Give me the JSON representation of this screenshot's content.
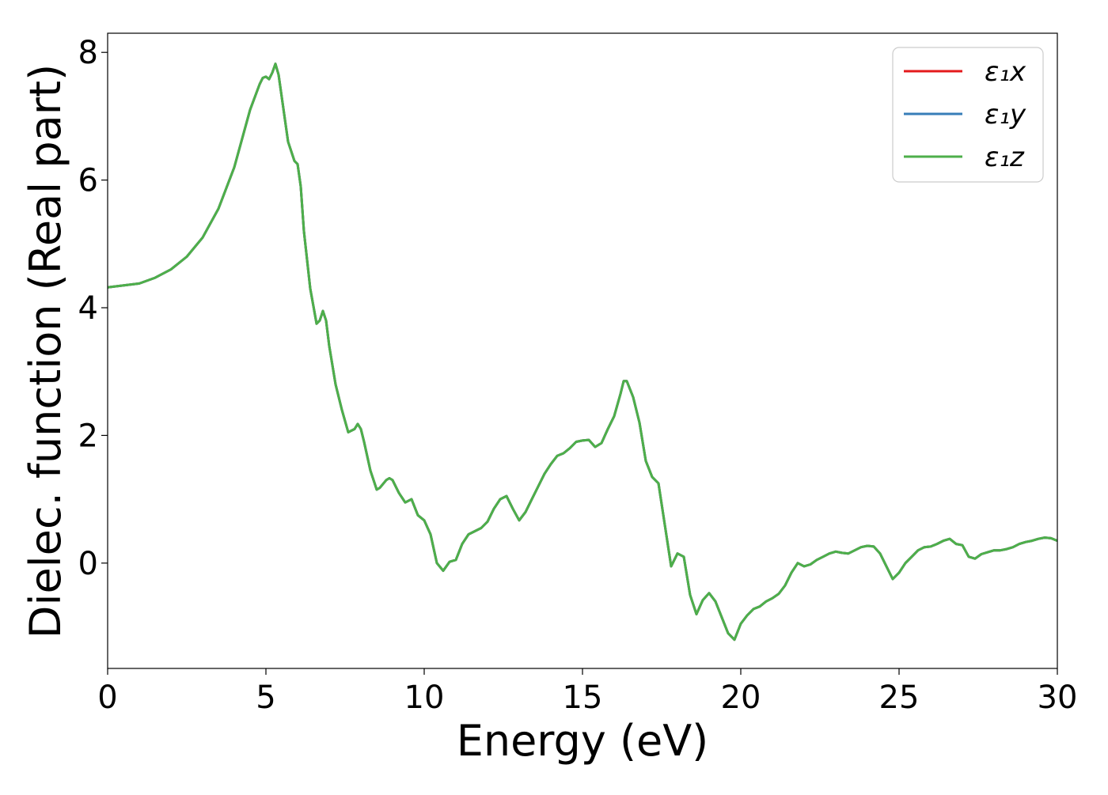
{
  "chart_data": {
    "type": "line",
    "title": "",
    "xlabel": "Energy (eV)",
    "ylabel": "Dielec. function (Real part)",
    "xlim": [
      0,
      30
    ],
    "ylim": [
      -1.65,
      8.3
    ],
    "xticks": [
      0,
      5,
      10,
      15,
      20,
      25,
      30
    ],
    "yticks": [
      0,
      2,
      4,
      6,
      8
    ],
    "grid": false,
    "legend_position": "top-right",
    "x": [
      0,
      1,
      1.5,
      2,
      2.5,
      3,
      3.5,
      4,
      4.5,
      4.8,
      4.9,
      5.0,
      5.1,
      5.2,
      5.3,
      5.4,
      5.5,
      5.7,
      5.9,
      6.0,
      6.1,
      6.2,
      6.4,
      6.6,
      6.7,
      6.8,
      6.9,
      7.0,
      7.2,
      7.4,
      7.6,
      7.8,
      7.9,
      8.0,
      8.1,
      8.3,
      8.5,
      8.6,
      8.8,
      8.9,
      9.0,
      9.2,
      9.4,
      9.6,
      9.8,
      10.0,
      10.2,
      10.4,
      10.6,
      10.8,
      11.0,
      11.2,
      11.4,
      11.6,
      11.8,
      12.0,
      12.2,
      12.4,
      12.6,
      12.8,
      13.0,
      13.2,
      13.4,
      13.6,
      13.8,
      14.0,
      14.2,
      14.4,
      14.6,
      14.8,
      15.0,
      15.2,
      15.4,
      15.6,
      15.8,
      16.0,
      16.2,
      16.3,
      16.4,
      16.6,
      16.8,
      17.0,
      17.2,
      17.4,
      17.6,
      17.8,
      18.0,
      18.2,
      18.4,
      18.6,
      18.8,
      19.0,
      19.2,
      19.4,
      19.6,
      19.8,
      20.0,
      20.2,
      20.4,
      20.6,
      20.8,
      21.0,
      21.2,
      21.4,
      21.6,
      21.8,
      22.0,
      22.2,
      22.4,
      22.6,
      22.8,
      23.0,
      23.2,
      23.4,
      23.6,
      23.8,
      24.0,
      24.2,
      24.4,
      24.6,
      24.8,
      25.0,
      25.2,
      25.4,
      25.6,
      25.8,
      26.0,
      26.2,
      26.4,
      26.6,
      26.8,
      27.0,
      27.2,
      27.4,
      27.6,
      27.8,
      28.0,
      28.2,
      28.4,
      28.6,
      28.8,
      29.0,
      29.2,
      29.4,
      29.6,
      29.8,
      30.0
    ],
    "series": [
      {
        "name": "ε₁x",
        "color": "#e41a1c",
        "y": [
          4.32,
          4.38,
          4.47,
          4.6,
          4.8,
          5.1,
          5.55,
          6.2,
          7.1,
          7.5,
          7.6,
          7.62,
          7.58,
          7.68,
          7.82,
          7.65,
          7.3,
          6.6,
          6.3,
          6.25,
          5.9,
          5.2,
          4.3,
          3.75,
          3.8,
          3.95,
          3.8,
          3.4,
          2.8,
          2.4,
          2.05,
          2.1,
          2.18,
          2.1,
          1.9,
          1.45,
          1.15,
          1.18,
          1.3,
          1.33,
          1.3,
          1.1,
          0.95,
          1.0,
          0.75,
          0.67,
          0.45,
          0.0,
          -0.12,
          0.02,
          0.05,
          0.3,
          0.45,
          0.5,
          0.55,
          0.65,
          0.85,
          1.0,
          1.05,
          0.85,
          0.67,
          0.8,
          1.0,
          1.2,
          1.4,
          1.55,
          1.68,
          1.72,
          1.8,
          1.9,
          1.92,
          1.93,
          1.82,
          1.88,
          2.1,
          2.3,
          2.65,
          2.85,
          2.85,
          2.6,
          2.2,
          1.6,
          1.35,
          1.25,
          0.6,
          -0.05,
          0.15,
          0.1,
          -0.5,
          -0.8,
          -0.58,
          -0.47,
          -0.6,
          -0.85,
          -1.1,
          -1.2,
          -0.95,
          -0.82,
          -0.72,
          -0.68,
          -0.6,
          -0.55,
          -0.48,
          -0.35,
          -0.15,
          0.0,
          -0.05,
          -0.02,
          0.05,
          0.1,
          0.15,
          0.18,
          0.16,
          0.15,
          0.2,
          0.25,
          0.27,
          0.26,
          0.15,
          -0.05,
          -0.25,
          -0.15,
          0.0,
          0.1,
          0.2,
          0.25,
          0.26,
          0.3,
          0.35,
          0.38,
          0.3,
          0.28,
          0.1,
          0.07,
          0.14,
          0.17,
          0.2,
          0.2,
          0.22,
          0.25,
          0.3,
          0.33,
          0.35,
          0.38,
          0.4,
          0.39,
          0.35
        ]
      },
      {
        "name": "ε₁y",
        "color": "#377eb8",
        "y": [
          4.32,
          4.38,
          4.47,
          4.6,
          4.8,
          5.1,
          5.55,
          6.2,
          7.1,
          7.5,
          7.6,
          7.62,
          7.58,
          7.68,
          7.82,
          7.65,
          7.3,
          6.6,
          6.3,
          6.25,
          5.9,
          5.2,
          4.3,
          3.75,
          3.8,
          3.95,
          3.8,
          3.4,
          2.8,
          2.4,
          2.05,
          2.1,
          2.18,
          2.1,
          1.9,
          1.45,
          1.15,
          1.18,
          1.3,
          1.33,
          1.3,
          1.1,
          0.95,
          1.0,
          0.75,
          0.67,
          0.45,
          0.0,
          -0.12,
          0.02,
          0.05,
          0.3,
          0.45,
          0.5,
          0.55,
          0.65,
          0.85,
          1.0,
          1.05,
          0.85,
          0.67,
          0.8,
          1.0,
          1.2,
          1.4,
          1.55,
          1.68,
          1.72,
          1.8,
          1.9,
          1.92,
          1.93,
          1.82,
          1.88,
          2.1,
          2.3,
          2.65,
          2.85,
          2.85,
          2.6,
          2.2,
          1.6,
          1.35,
          1.25,
          0.6,
          -0.05,
          0.15,
          0.1,
          -0.5,
          -0.8,
          -0.58,
          -0.47,
          -0.6,
          -0.85,
          -1.1,
          -1.2,
          -0.95,
          -0.82,
          -0.72,
          -0.68,
          -0.6,
          -0.55,
          -0.48,
          -0.35,
          -0.15,
          0.0,
          -0.05,
          -0.02,
          0.05,
          0.1,
          0.15,
          0.18,
          0.16,
          0.15,
          0.2,
          0.25,
          0.27,
          0.26,
          0.15,
          -0.05,
          -0.25,
          -0.15,
          0.0,
          0.1,
          0.2,
          0.25,
          0.26,
          0.3,
          0.35,
          0.38,
          0.3,
          0.28,
          0.1,
          0.07,
          0.14,
          0.17,
          0.2,
          0.2,
          0.22,
          0.25,
          0.3,
          0.33,
          0.35,
          0.38,
          0.4,
          0.39,
          0.35
        ]
      },
      {
        "name": "ε₁z",
        "color": "#4daf4a",
        "y": [
          4.32,
          4.38,
          4.47,
          4.6,
          4.8,
          5.1,
          5.55,
          6.2,
          7.1,
          7.5,
          7.6,
          7.62,
          7.58,
          7.68,
          7.82,
          7.65,
          7.3,
          6.6,
          6.3,
          6.25,
          5.9,
          5.2,
          4.3,
          3.75,
          3.8,
          3.95,
          3.8,
          3.4,
          2.8,
          2.4,
          2.05,
          2.1,
          2.18,
          2.1,
          1.9,
          1.45,
          1.15,
          1.18,
          1.3,
          1.33,
          1.3,
          1.1,
          0.95,
          1.0,
          0.75,
          0.67,
          0.45,
          0.0,
          -0.12,
          0.02,
          0.05,
          0.3,
          0.45,
          0.5,
          0.55,
          0.65,
          0.85,
          1.0,
          1.05,
          0.85,
          0.67,
          0.8,
          1.0,
          1.2,
          1.4,
          1.55,
          1.68,
          1.72,
          1.8,
          1.9,
          1.92,
          1.93,
          1.82,
          1.88,
          2.1,
          2.3,
          2.65,
          2.85,
          2.85,
          2.6,
          2.2,
          1.6,
          1.35,
          1.25,
          0.6,
          -0.05,
          0.15,
          0.1,
          -0.5,
          -0.8,
          -0.58,
          -0.47,
          -0.6,
          -0.85,
          -1.1,
          -1.2,
          -0.95,
          -0.82,
          -0.72,
          -0.68,
          -0.6,
          -0.55,
          -0.48,
          -0.35,
          -0.15,
          0.0,
          -0.05,
          -0.02,
          0.05,
          0.1,
          0.15,
          0.18,
          0.16,
          0.15,
          0.2,
          0.25,
          0.27,
          0.26,
          0.15,
          -0.05,
          -0.25,
          -0.15,
          0.0,
          0.1,
          0.2,
          0.25,
          0.26,
          0.3,
          0.35,
          0.38,
          0.3,
          0.28,
          0.1,
          0.07,
          0.14,
          0.17,
          0.2,
          0.2,
          0.22,
          0.25,
          0.3,
          0.33,
          0.35,
          0.38,
          0.4,
          0.39,
          0.35
        ]
      }
    ]
  }
}
